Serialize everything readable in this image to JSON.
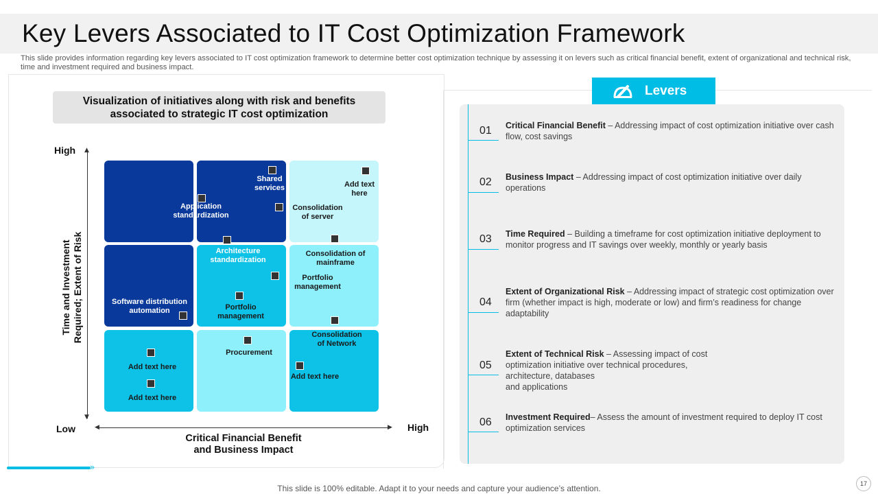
{
  "title": "Key Levers Associated to IT Cost Optimization Framework",
  "subtitle": "This slide provides information regarding key levers associated to IT cost optimization framework to determine better cost optimization technique by assessing it on levers such as critical financial benefit, extent of organizational and technical risk, time and investment required and business impact.",
  "viz": {
    "heading_line1": "Visualization of initiatives along with risk and benefits",
    "heading_line2": "associated to strategic IT cost optimization"
  },
  "axes": {
    "y_high": "High",
    "low": "Low",
    "x_high": "High",
    "y_title_line1": "Time and Investment",
    "y_title_line2": "Required; Extent of Risk",
    "x_title_line1": "Critical Financial Benefit",
    "x_title_line2": "and Business Impact"
  },
  "matrix": {
    "shared_services_1": "Shared",
    "shared_services_2": "services",
    "add_text_here_1": "Add text",
    "add_text_here_2": "here",
    "application_1": "Application",
    "application_2": "standardization",
    "consolidation_server_1": "Consolidation",
    "consolidation_server_2": "of server",
    "architecture_1": "Architecture",
    "architecture_2": "standardization",
    "consolidation_mainframe_1": "Consolidation of",
    "consolidation_mainframe_2": "mainframe",
    "portfolio_right_1": "Portfolio",
    "portfolio_right_2": "management",
    "software_1": "Software distribution",
    "software_2": "automation",
    "portfolio_mid_1": "Portfolio",
    "portfolio_mid_2": "management",
    "consolidation_network_1": "Consolidation",
    "consolidation_network_2": "of Network",
    "procurement": "Procurement",
    "add_text_a": "Add text here",
    "add_text_b": "Add text here",
    "add_text_c": "Add text here"
  },
  "levers": {
    "button_label": "Levers",
    "items": [
      {
        "num": "01",
        "title": "Critical Financial Benefit",
        "text": " – Addressing impact of cost optimization initiative over cash flow, cost savings"
      },
      {
        "num": "02",
        "title": "Business  Impact",
        "text": " – Addressing impact of cost optimization initiative over daily operations"
      },
      {
        "num": "03",
        "title": "Time Required",
        "text": " – Building a timeframe for cost optimization initiative deployment to monitor progress and IT savings over weekly, monthly or yearly basis"
      },
      {
        "num": "04",
        "title": "Extent of Organizational Risk",
        "text": " – Addressing impact of strategic cost optimization over firm (whether impact is high, moderate or low) and firm’s readiness for change adaptability"
      },
      {
        "num": "05",
        "title": "Extent of Technical Risk",
        "text_1": " – Assessing impact of cost optimization initiative over technical procedures, architecture, databases",
        "text_2": "and applications"
      },
      {
        "num": "06",
        "title": "Investment Required",
        "text": "– Assess the amount of investment required  to deploy IT cost optimization services"
      }
    ]
  },
  "footer": "This slide is 100% editable. Adapt it to your needs and capture your audience’s attention.",
  "page_number": "17",
  "colors": {
    "accent": "#00bde6",
    "dark_blue": "#08399b",
    "mid_cyan": "#0dc2e6",
    "light_cyan": "#8ef0fb",
    "pale_cyan": "#c4f6fb"
  }
}
